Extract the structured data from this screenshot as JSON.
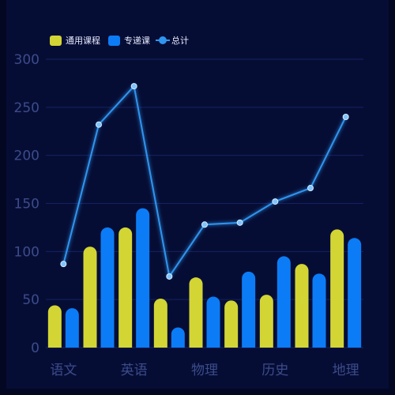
{
  "colors": {
    "background": "#060d35",
    "general": "#d3d534",
    "specialized": "#0c7cf6",
    "total": "#2f95ef",
    "axis_label": "#3c4c8a",
    "grid": "#142262"
  },
  "legend": {
    "general_label": "通用课程",
    "specialized_label": "专递课",
    "total_label": "总计"
  },
  "chart_data": {
    "type": "bar",
    "categories": [
      "语文",
      "",
      "英语",
      "",
      "物理",
      "",
      "历史",
      "",
      "地理"
    ],
    "x_tick_labels": [
      "语文",
      "英语",
      "物理",
      "历史",
      "地理"
    ],
    "ylim": [
      0,
      300
    ],
    "yticks": [
      0,
      50,
      100,
      150,
      200,
      250,
      300
    ],
    "series": [
      {
        "name": "通用课程",
        "type": "bar",
        "values": [
          44,
          105,
          125,
          51,
          73,
          49,
          55,
          87,
          123
        ]
      },
      {
        "name": "专递课",
        "type": "bar",
        "values": [
          41,
          125,
          145,
          21,
          53,
          79,
          95,
          77,
          114
        ]
      },
      {
        "name": "总计",
        "type": "line",
        "values": [
          87,
          232,
          272,
          74,
          128,
          130,
          152,
          166,
          240
        ]
      }
    ],
    "grid": true,
    "legend_position": "top-left"
  }
}
